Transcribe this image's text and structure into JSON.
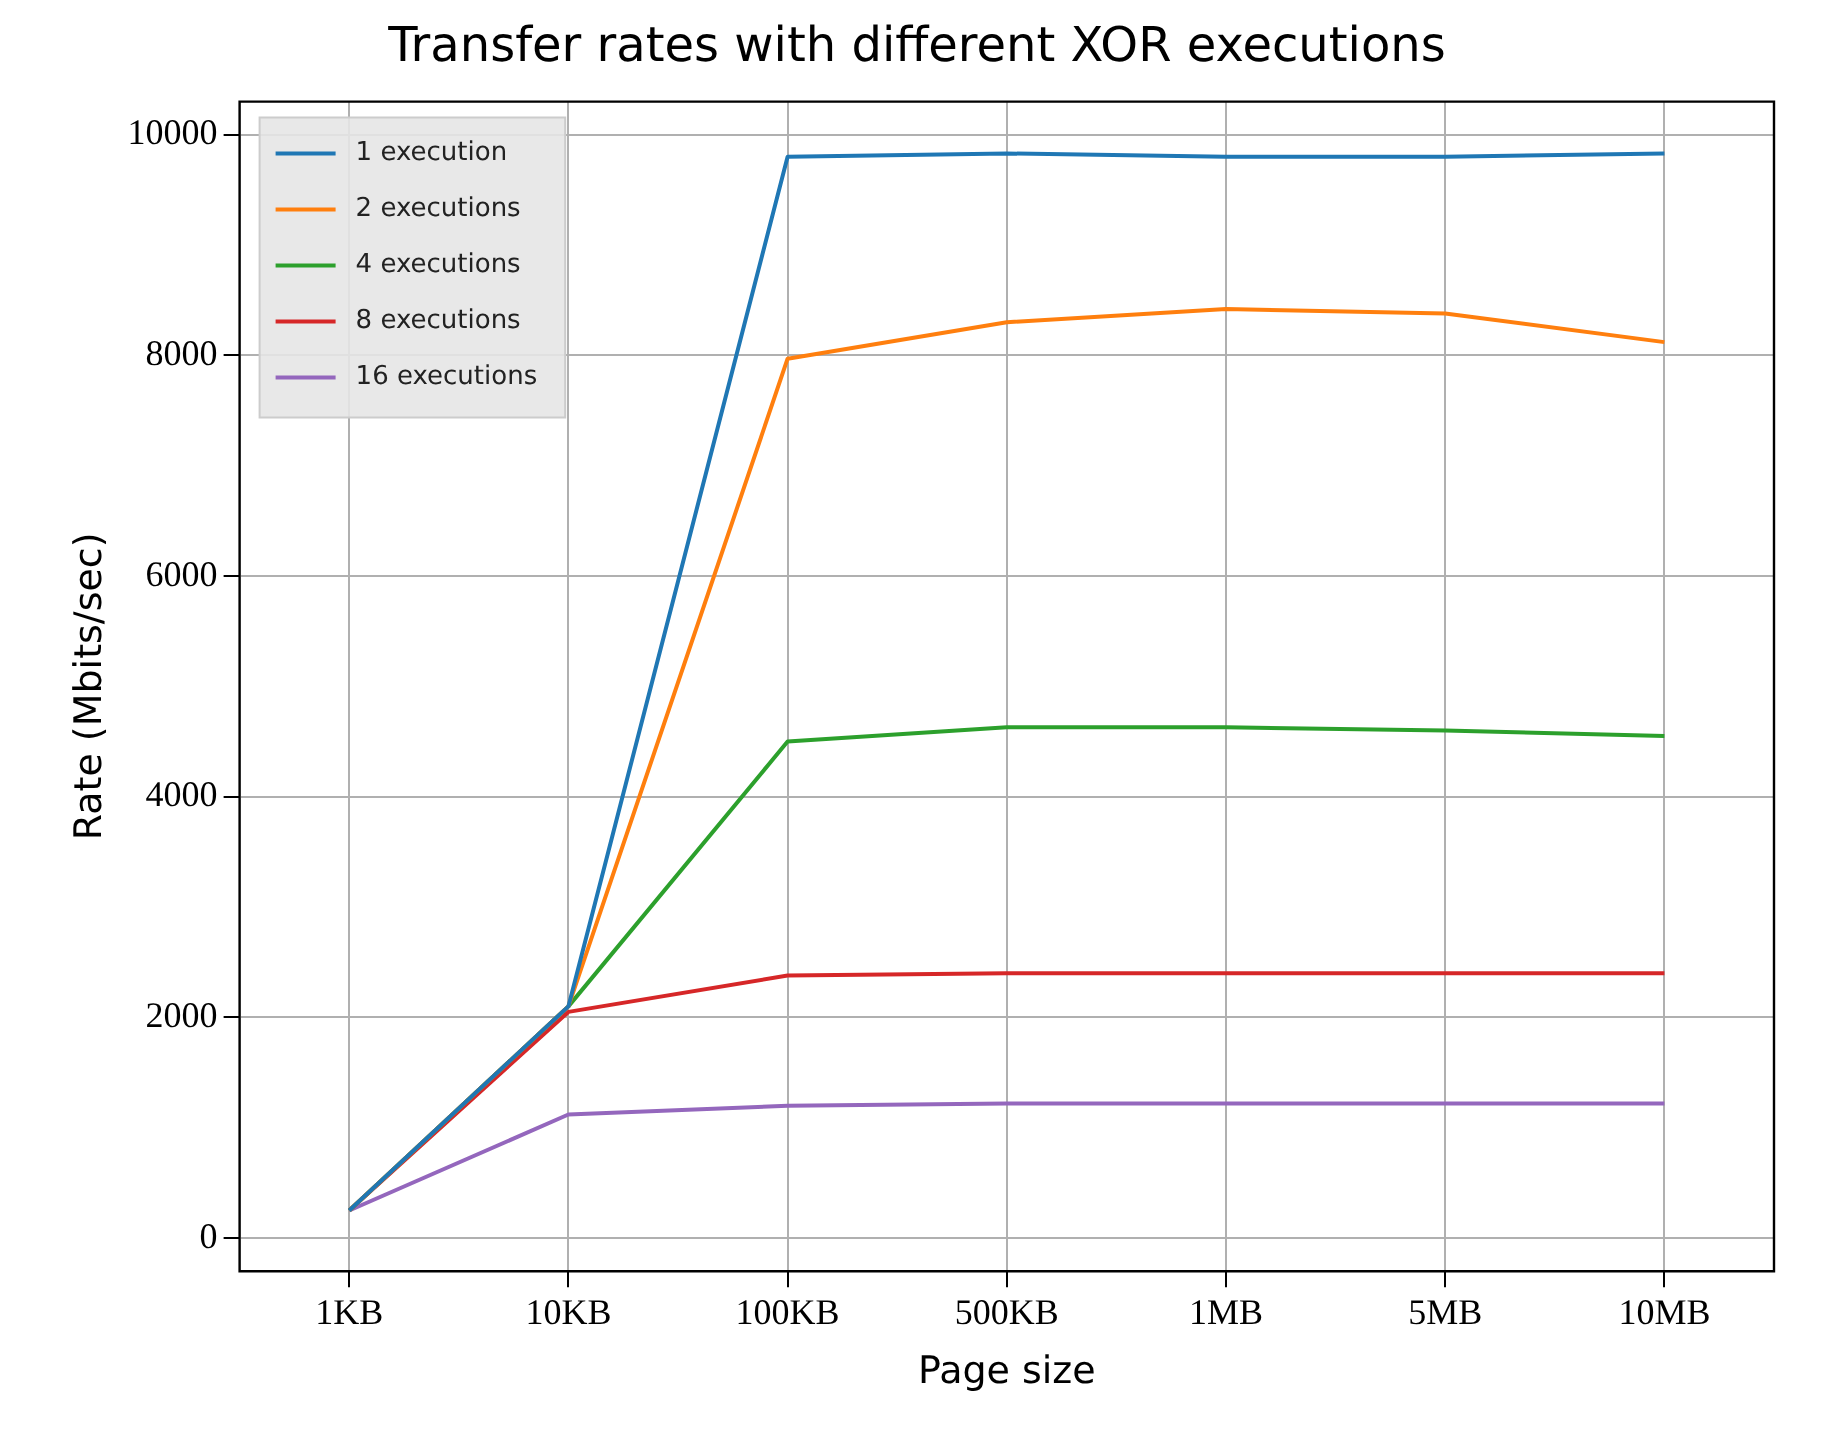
{
  "chart_data": {
    "type": "line",
    "title": "Transfer rates with different XOR executions",
    "xlabel": "Page size",
    "ylabel": "Rate (Mbits/sec)",
    "categories": [
      "1KB",
      "10KB",
      "100KB",
      "500KB",
      "1MB",
      "5MB",
      "10MB"
    ],
    "series": [
      {
        "name": "1 execution",
        "color": "#1f77b4",
        "values": [
          250,
          2100,
          9800,
          9830,
          9800,
          9800,
          9830
        ]
      },
      {
        "name": "2 executions",
        "color": "#ff7f0e",
        "values": [
          250,
          2100,
          7970,
          8300,
          8420,
          8380,
          8120
        ]
      },
      {
        "name": "4 executions",
        "color": "#2ca02c",
        "values": [
          250,
          2100,
          4500,
          4630,
          4630,
          4600,
          4550
        ]
      },
      {
        "name": "8 executions",
        "color": "#d62728",
        "values": [
          250,
          2050,
          2380,
          2400,
          2400,
          2400,
          2400
        ]
      },
      {
        "name": "16 executions",
        "color": "#9467bd",
        "values": [
          250,
          1120,
          1200,
          1220,
          1220,
          1220,
          1220
        ]
      }
    ],
    "ylim": [
      -300,
      10300
    ],
    "yticks": [
      0,
      2000,
      4000,
      6000,
      8000,
      10000
    ],
    "grid": true,
    "legend": "top left",
    "marker": "none",
    "line_style": "solid"
  }
}
